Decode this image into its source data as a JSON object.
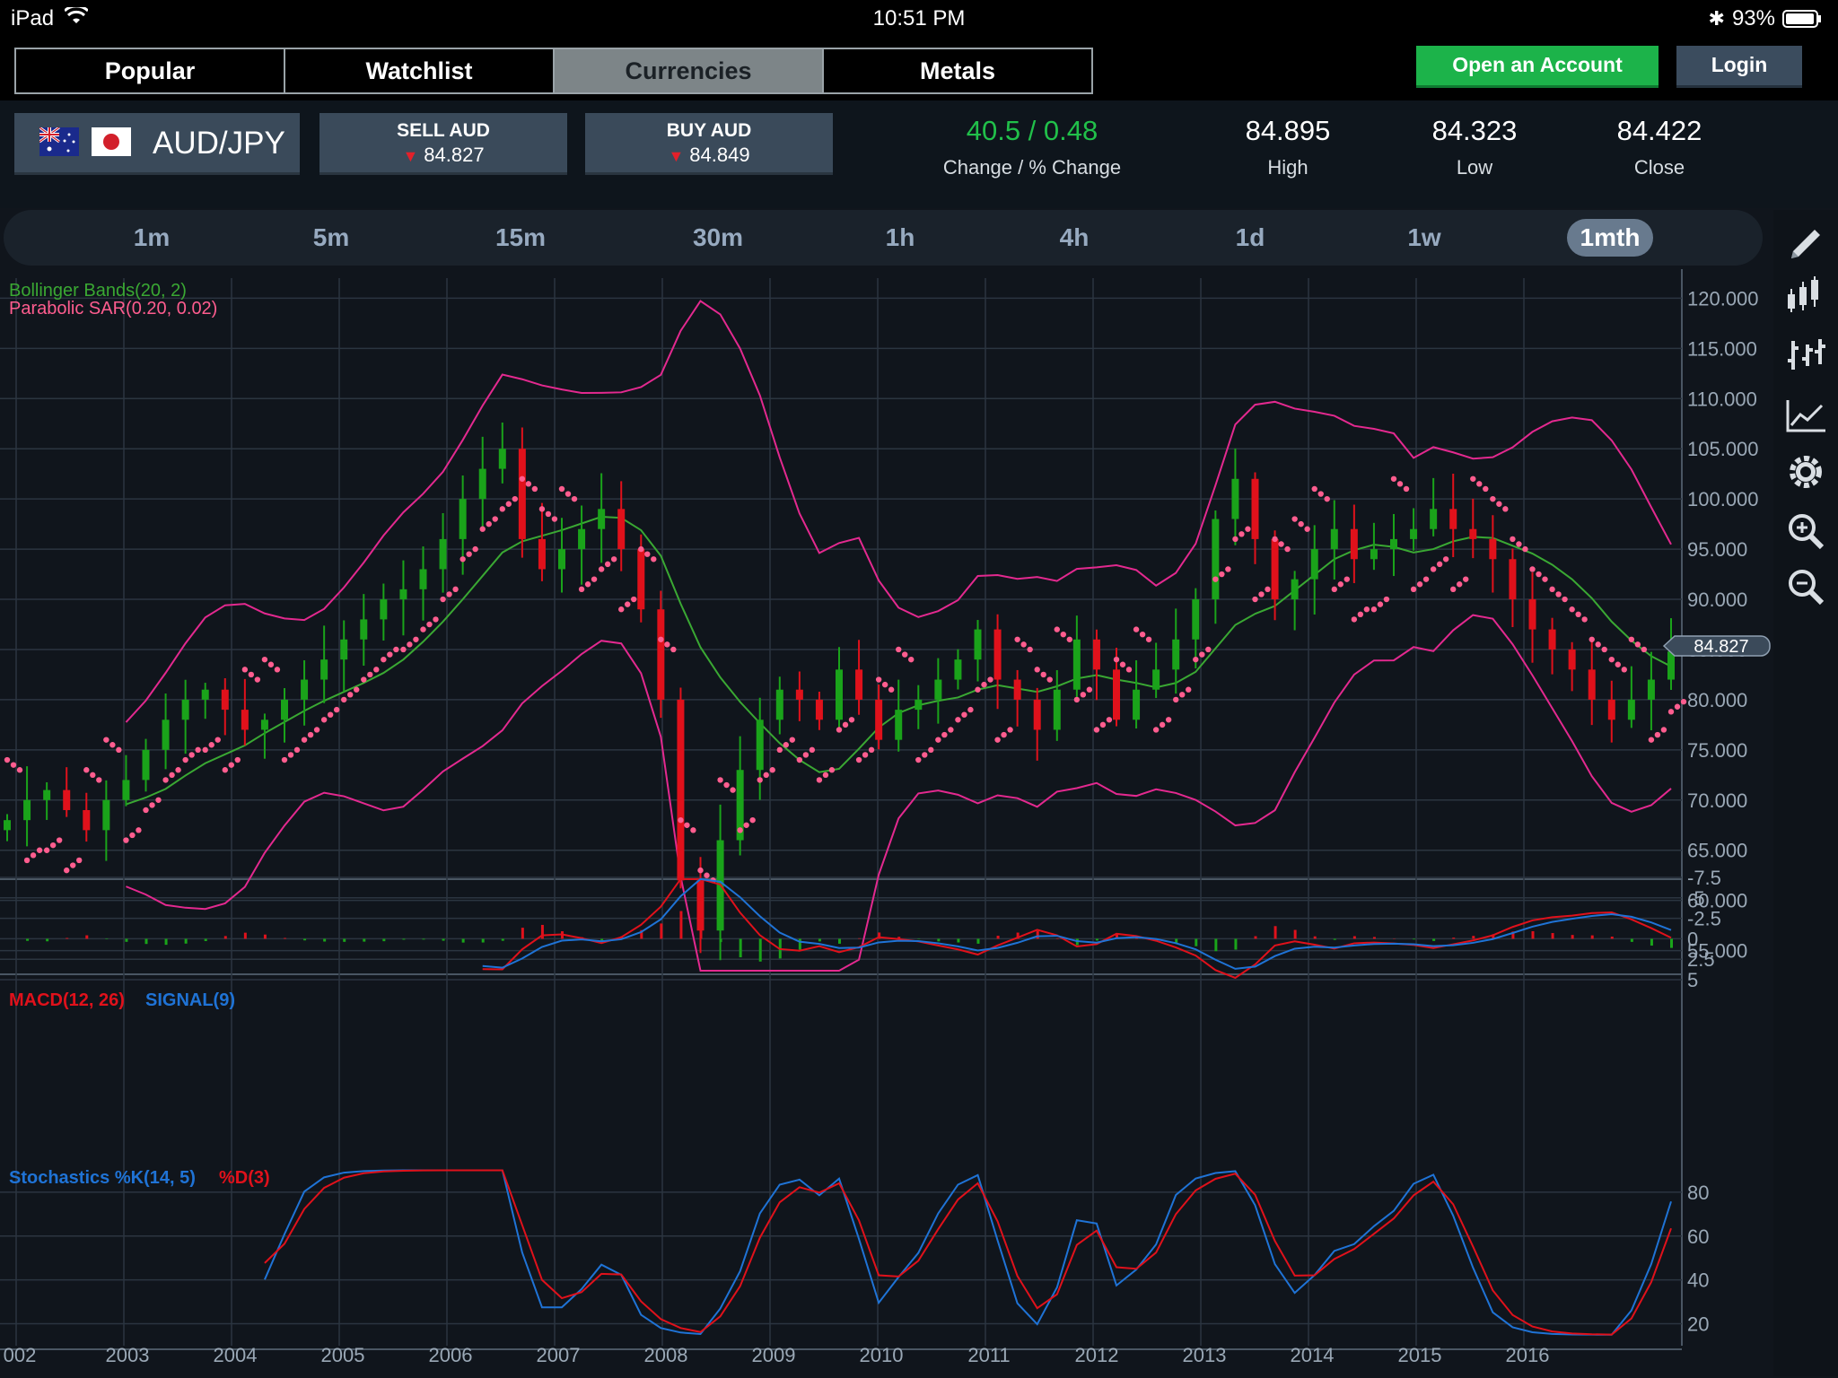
{
  "status_bar": {
    "device": "iPad",
    "time": "10:51 PM",
    "battery": "93%"
  },
  "nav": {
    "tabs": [
      {
        "label": "Popular",
        "active": false
      },
      {
        "label": "Watchlist",
        "active": false
      },
      {
        "label": "Currencies",
        "active": true
      },
      {
        "label": "Metals",
        "active": false
      }
    ],
    "open_account": "Open an Account",
    "login": "Login"
  },
  "quote": {
    "pair": "AUD/JPY",
    "sell_label": "SELL AUD",
    "sell_price": "84.827",
    "buy_label": "BUY AUD",
    "buy_price": "84.849",
    "change_value": "40.5 / 0.48",
    "change_label": "Change / % Change",
    "high_value": "84.895",
    "high_label": "High",
    "low_value": "84.323",
    "low_label": "Low",
    "close_value": "84.422",
    "close_label": "Close"
  },
  "timeframes": [
    "1m",
    "5m",
    "15m",
    "30m",
    "1h",
    "4h",
    "1d",
    "1w",
    "1mth"
  ],
  "selected_timeframe": "1mth",
  "tools": [
    "pencil-icon",
    "candlestick-icon",
    "ohlc-bars-icon",
    "line-chart-icon",
    "settings-icon",
    "zoom-in-icon",
    "zoom-out-icon"
  ],
  "colors": {
    "bg": "#10151c",
    "up": "#1aa31a",
    "down": "#e0111b",
    "boll_mid": "#3aa833",
    "boll_band": "#e3298f",
    "sar": "#ff5d8f",
    "macd": "#e0111b",
    "signal": "#1f73d6",
    "k": "#1f73d6",
    "d": "#e0111b",
    "accent_green": "#1cb34a"
  },
  "chart_data": [
    {
      "type": "candlestick",
      "panel": "price",
      "indicators_legend": [
        "Bollinger Bands(20, 2)",
        "Parabolic SAR(0.20, 0.02)"
      ],
      "y_ticks": [
        "120.000",
        "115.000",
        "110.000",
        "105.000",
        "100.000",
        "95.000",
        "90.000",
        "85.000",
        "80.000",
        "75.000",
        "70.000",
        "65.000",
        "60.000",
        "55.000"
      ],
      "ylim": [
        53,
        122
      ],
      "x_labels": [
        "002",
        "2003",
        "2004",
        "2005",
        "2006",
        "2007",
        "2008",
        "2009",
        "2010",
        "2011",
        "2012",
        "2013",
        "2014",
        "2015",
        "2016"
      ],
      "current_price_label": "84.827",
      "current_price": 84.827,
      "close_series": [
        68,
        70,
        71,
        69,
        67,
        70,
        72,
        75,
        78,
        80,
        81,
        79,
        77,
        78,
        80,
        82,
        84,
        86,
        88,
        90,
        91,
        93,
        96,
        100,
        103,
        105,
        96,
        93,
        95,
        97,
        99,
        95,
        89,
        80,
        62,
        57,
        66,
        73,
        78,
        81,
        80,
        78,
        83,
        80,
        76,
        79,
        80,
        82,
        84,
        87,
        82,
        80,
        77,
        81,
        86,
        83,
        78,
        81,
        83,
        86,
        90,
        98,
        102,
        96,
        90,
        92,
        95,
        97,
        94,
        95,
        96,
        97,
        99,
        97,
        96,
        94,
        90,
        87,
        85,
        83,
        80,
        78,
        80,
        82,
        84.8
      ]
    },
    {
      "type": "line",
      "panel": "macd",
      "legend": [
        "MACD(12, 26)",
        "SIGNAL(9)"
      ],
      "y_ticks": [
        "5",
        "2.5",
        "0",
        "-2.5",
        "-5",
        "-7.5"
      ],
      "ylim": [
        -7.5,
        5
      ]
    },
    {
      "type": "line",
      "panel": "stochastics",
      "legend": [
        "Stochastics %K(14, 5)",
        "%D(3)"
      ],
      "y_ticks": [
        "80",
        "60",
        "40",
        "20"
      ],
      "ylim": [
        10,
        100
      ]
    }
  ]
}
